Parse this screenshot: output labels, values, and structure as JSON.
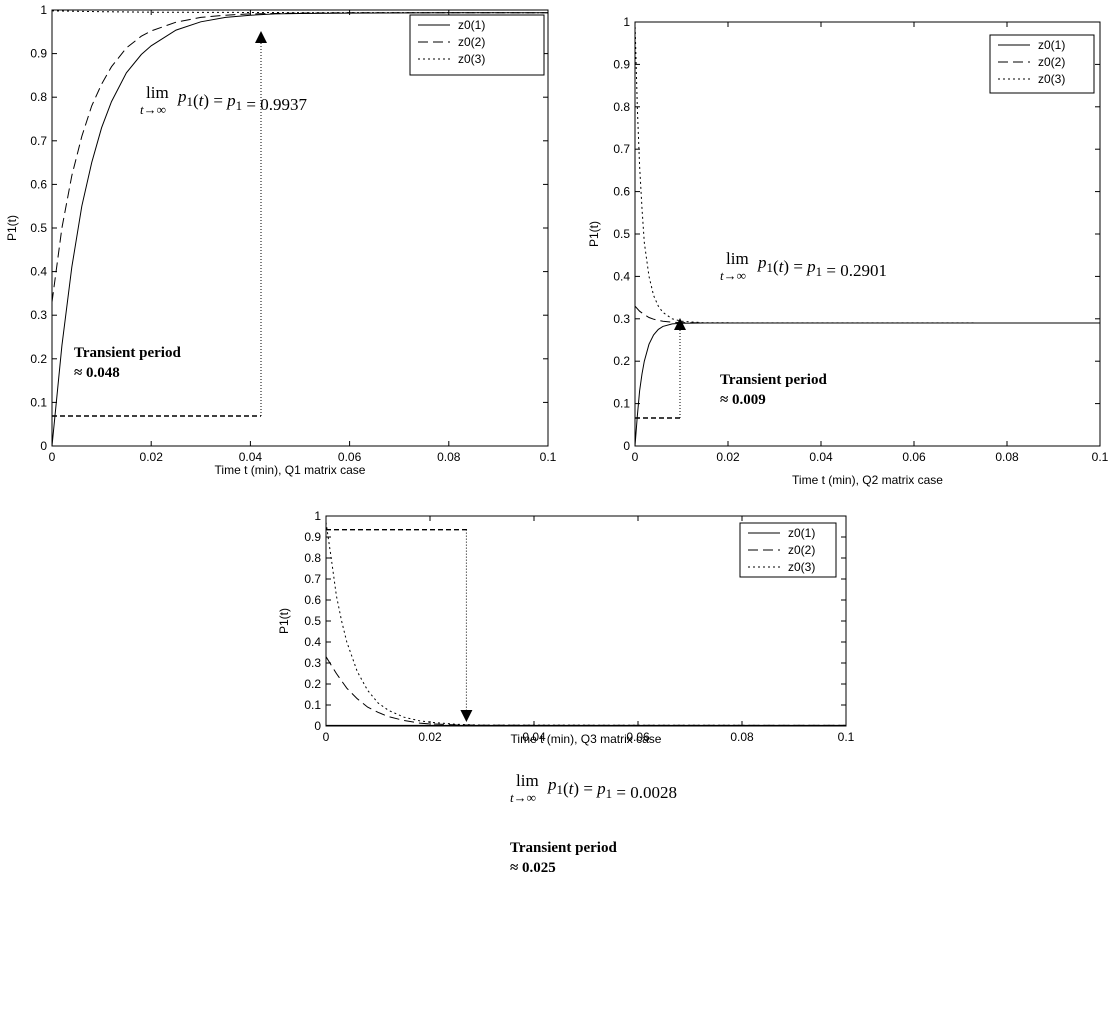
{
  "chart_data": [
    {
      "type": "line",
      "panel": "Q1",
      "xlabel": "Time t (min),  Q1 matrix case",
      "ylabel": "P1(t)",
      "xlim": [
        0,
        0.1
      ],
      "ylim": [
        0,
        1
      ],
      "xticks": [
        "0",
        "0.02",
        "0.04",
        "0.06",
        "0.08",
        "0.1"
      ],
      "yticks": [
        "0",
        "0.1",
        "0.2",
        "0.3",
        "0.4",
        "0.5",
        "0.6",
        "0.7",
        "0.8",
        "0.9",
        "1"
      ],
      "legend": {
        "position": "top-right",
        "entries": [
          "z0(1)",
          "z0(2)",
          "z0(3)"
        ]
      },
      "series": [
        {
          "name": "z0(1)",
          "style": "solid",
          "x": [
            0,
            0.002,
            0.004,
            0.006,
            0.008,
            0.01,
            0.012,
            0.015,
            0.018,
            0.02,
            0.025,
            0.03,
            0.035,
            0.04,
            0.045,
            0.05,
            0.06,
            0.08,
            0.1
          ],
          "y": [
            0,
            0.23,
            0.41,
            0.55,
            0.65,
            0.73,
            0.79,
            0.856,
            0.898,
            0.918,
            0.954,
            0.973,
            0.983,
            0.988,
            0.991,
            0.992,
            0.993,
            0.9937,
            0.9937
          ]
        },
        {
          "name": "z0(2)",
          "style": "dashed",
          "x": [
            0,
            0.002,
            0.004,
            0.006,
            0.008,
            0.01,
            0.012,
            0.015,
            0.018,
            0.02,
            0.025,
            0.03,
            0.035,
            0.04,
            0.045,
            0.05,
            0.06,
            0.08,
            0.1
          ],
          "y": [
            0.33,
            0.5,
            0.62,
            0.71,
            0.78,
            0.83,
            0.87,
            0.913,
            0.94,
            0.952,
            0.972,
            0.983,
            0.988,
            0.991,
            0.992,
            0.993,
            0.9935,
            0.9937,
            0.9937
          ]
        },
        {
          "name": "z0(3)",
          "style": "dotted",
          "x": [
            0,
            0.01,
            0.02,
            0.05,
            0.1
          ],
          "y": [
            0.998,
            0.996,
            0.995,
            0.994,
            0.9937
          ]
        }
      ],
      "annotations": {
        "limit_value": "0.9937",
        "transient_title": "Transient period",
        "transient_value": "≈ 0.048"
      }
    },
    {
      "type": "line",
      "panel": "Q2",
      "xlabel": "Time t (min), Q2 matrix case",
      "ylabel": "P1(t)",
      "xlim": [
        0,
        0.1
      ],
      "ylim": [
        0,
        1
      ],
      "xticks": [
        "0",
        "0.02",
        "0.04",
        "0.06",
        "0.08",
        "0.1"
      ],
      "yticks": [
        "0",
        "0.1",
        "0.2",
        "0.3",
        "0.4",
        "0.5",
        "0.6",
        "0.7",
        "0.8",
        "0.9",
        "1"
      ],
      "legend": {
        "position": "top-right",
        "entries": [
          "z0(1)",
          "z0(2)",
          "z0(3)"
        ]
      },
      "series": [
        {
          "name": "z0(1)",
          "style": "solid",
          "x": [
            0,
            0.0005,
            0.001,
            0.0015,
            0.002,
            0.003,
            0.004,
            0.005,
            0.006,
            0.008,
            0.01,
            0.015,
            0.02,
            0.1
          ],
          "y": [
            0,
            0.07,
            0.13,
            0.17,
            0.2,
            0.24,
            0.262,
            0.275,
            0.282,
            0.288,
            0.2895,
            0.2901,
            0.2901,
            0.2901
          ]
        },
        {
          "name": "z0(2)",
          "style": "dashed",
          "x": [
            0,
            0.001,
            0.002,
            0.003,
            0.004,
            0.006,
            0.008,
            0.01,
            0.015,
            0.1
          ],
          "y": [
            0.33,
            0.318,
            0.31,
            0.303,
            0.299,
            0.294,
            0.292,
            0.291,
            0.2901,
            0.2901
          ]
        },
        {
          "name": "z0(3)",
          "style": "dotted",
          "x": [
            0,
            0.0005,
            0.001,
            0.0015,
            0.002,
            0.003,
            0.004,
            0.005,
            0.006,
            0.008,
            0.01,
            0.015,
            0.1
          ],
          "y": [
            1.0,
            0.8,
            0.66,
            0.56,
            0.48,
            0.4,
            0.355,
            0.33,
            0.315,
            0.3,
            0.294,
            0.2905,
            0.2901
          ]
        }
      ],
      "annotations": {
        "limit_value": "0.2901",
        "transient_title": "Transient period",
        "transient_value": "≈ 0.009"
      }
    },
    {
      "type": "line",
      "panel": "Q3",
      "xlabel": "Time t (min), Q3 matrix case",
      "ylabel": "P1(t)",
      "xlim": [
        0,
        0.1
      ],
      "ylim": [
        0,
        1
      ],
      "xticks": [
        "0",
        "0.02",
        "0.04",
        "0.06",
        "0.08",
        "0.1"
      ],
      "yticks": [
        "0",
        "0.1",
        "0.2",
        "0.3",
        "0.4",
        "0.5",
        "0.6",
        "0.7",
        "0.8",
        "0.9",
        "1"
      ],
      "legend": {
        "position": "top-right",
        "entries": [
          "z0(1)",
          "z0(2)",
          "z0(3)"
        ]
      },
      "series": [
        {
          "name": "z0(1)",
          "style": "solid",
          "x": [
            0,
            0.02,
            0.1
          ],
          "y": [
            0.0028,
            0.0028,
            0.0028
          ]
        },
        {
          "name": "z0(2)",
          "style": "dashed",
          "x": [
            0,
            0.002,
            0.004,
            0.006,
            0.008,
            0.01,
            0.012,
            0.015,
            0.018,
            0.02,
            0.025,
            0.03,
            0.1
          ],
          "y": [
            0.33,
            0.25,
            0.18,
            0.13,
            0.09,
            0.065,
            0.045,
            0.026,
            0.014,
            0.01,
            0.005,
            0.0035,
            0.0028
          ]
        },
        {
          "name": "z0(3)",
          "style": "dotted",
          "x": [
            0,
            0.001,
            0.002,
            0.003,
            0.004,
            0.006,
            0.008,
            0.01,
            0.012,
            0.015,
            0.018,
            0.02,
            0.025,
            0.03,
            0.1
          ],
          "y": [
            0.97,
            0.8,
            0.62,
            0.5,
            0.4,
            0.26,
            0.17,
            0.11,
            0.075,
            0.042,
            0.025,
            0.018,
            0.008,
            0.0045,
            0.0028
          ]
        }
      ],
      "annotations": {
        "limit_value": "0.0028",
        "transient_title": "Transient period",
        "transient_value": "≈ 0.025"
      }
    }
  ]
}
